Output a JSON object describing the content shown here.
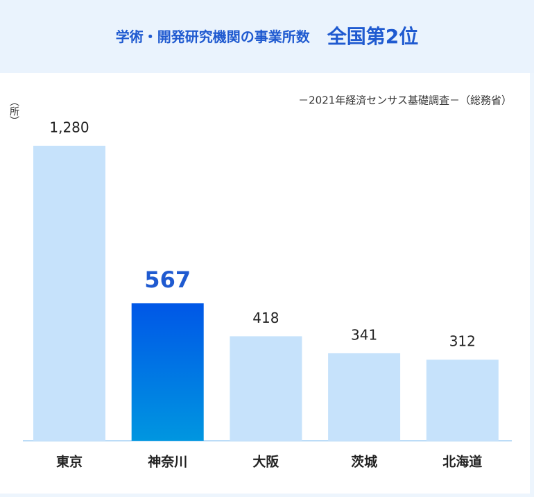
{
  "chart_data": {
    "type": "bar",
    "title": "学術・開発研究機関の事業所数",
    "title_emphasis": "全国第2位",
    "source": "－2021年経済センサス基礎調査－（総務省）",
    "unit": "（所）",
    "categories": [
      "東京",
      "神奈川",
      "大阪",
      "茨城",
      "北海道"
    ],
    "values": [
      1280,
      567,
      418,
      341,
      312
    ],
    "value_labels": [
      "1,280",
      "567",
      "418",
      "341",
      "312"
    ],
    "colors": [
      "#c6e2fb",
      "#0057e7",
      "#c6e2fb",
      "#c6e2fb",
      "#c6e2fb"
    ],
    "highlight_index": 1
  }
}
